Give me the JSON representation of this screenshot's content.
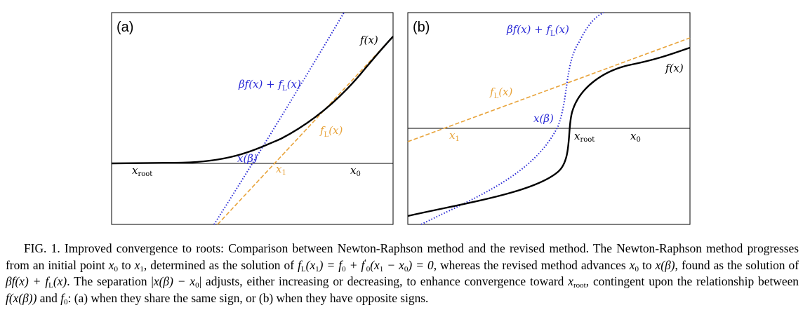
{
  "figure": {
    "panel_a_label": "(a)",
    "panel_b_label": "(b)",
    "panel_a": {
      "curve_f_label_main": "f(x)",
      "curve_beta_label_main": "βf(x) + f",
      "curve_beta_label_sub": "L",
      "curve_beta_label_tail": "(x)",
      "curve_fl_label_main": "f",
      "curve_fl_label_sub": "L",
      "curve_fl_label_tail": "(x)",
      "x_beta_label": "x(β)",
      "x_root_main": "x",
      "x_root_sub": "root",
      "x1_main": "x",
      "x1_sub": "1",
      "x0_main": "x",
      "x0_sub": "0"
    },
    "panel_b": {
      "curve_f_label_main": "f(x)",
      "curve_beta_label_main": "βf(x) + f",
      "curve_beta_label_sub": "L",
      "curve_beta_label_tail": "(x)",
      "curve_fl_label_main": "f",
      "curve_fl_label_sub": "L",
      "curve_fl_label_tail": "(x)",
      "x_beta_label": "x(β)",
      "x_root_main": "x",
      "x_root_sub": "root",
      "x1_main": "x",
      "x1_sub": "1",
      "x0_main": "x",
      "x0_sub": "0"
    },
    "colors": {
      "f_curve": "#000000",
      "beta_curve": "#2a2ad6",
      "fl_curve": "#e8a33a",
      "axis": "#000000"
    }
  },
  "caption": {
    "fig_label": "FIG. 1.",
    "t1": " Improved convergence to roots: Comparison between Newton-Raphson method and the revised method. The Newton-Raphson method progresses from an initial point ",
    "x0": "x",
    "x0_sub": "0",
    "t2": " to ",
    "x1": "x",
    "x1_sub": "1",
    "t3": ", determined as the solution of ",
    "eq1a": "f",
    "eq1a_sub": "L",
    "eq1b": "(x",
    "eq1b_sub": "1",
    "eq1c": ") = f",
    "eq1c_sub": "0",
    "eq1d": " + f",
    "eq1d_sup": "′",
    "eq1d_sub": "0",
    "eq1e": "(x",
    "eq1e_sub": "1",
    "eq1f": " − x",
    "eq1f_sub": "0",
    "eq1g": ") = 0",
    "t4": ", whereas the revised method advances ",
    "t4x": "x",
    "t4x_sub": "0",
    "t5": " to ",
    "t5x": "x(β)",
    "t6": ", found as the solution of ",
    "eq2": "βf(x) + f",
    "eq2_sub": "L",
    "eq2b": "(x)",
    "t7": ". The separation |",
    "t7x": "x(β) − x",
    "t7x_sub": "0",
    "t8": "| adjusts, either increasing or decreasing, to enhance convergence toward ",
    "t8x": "x",
    "t8x_sub": "root",
    "t9": ", contingent upon the relationship between ",
    "t9x": "f(x(β))",
    "t10": " and ",
    "t10x": "f",
    "t10x_sub": "0",
    "t11": ": (a) when they share the same sign, or (b) when they have opposite signs."
  }
}
